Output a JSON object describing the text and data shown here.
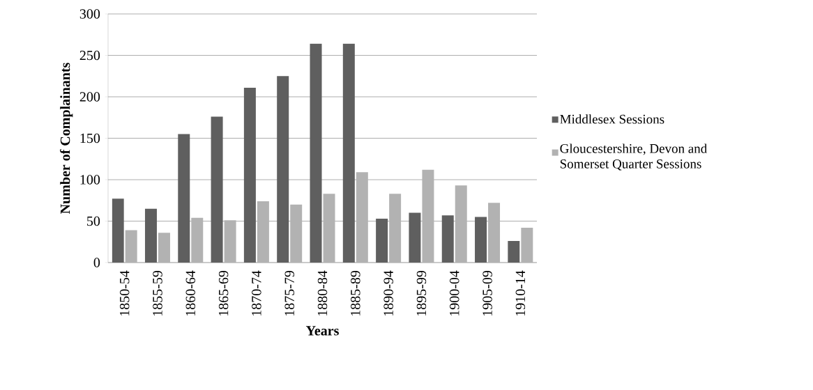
{
  "chart_data": {
    "type": "bar",
    "xlabel": "Years",
    "ylabel": "Number of Complainants",
    "categories": [
      "1850-54",
      "1855-59",
      "1860-64",
      "1865-69",
      "1870-74",
      "1875-79",
      "1880-84",
      "1885-89",
      "1890-94",
      "1895-99",
      "1900-04",
      "1905-09",
      "1910-14"
    ],
    "series": [
      {
        "name": "Middlesex Sessions",
        "color": "#5f5f5f",
        "values": [
          77,
          65,
          155,
          176,
          211,
          225,
          264,
          264,
          53,
          60,
          57,
          55,
          26
        ]
      },
      {
        "name": "Gloucestershire, Devon and Somerset Quarter Sessions",
        "color": "#b2b2b2",
        "values": [
          39,
          36,
          54,
          51,
          74,
          70,
          83,
          109,
          83,
          112,
          93,
          72,
          42
        ]
      }
    ],
    "ylim": [
      0,
      300
    ],
    "yticks": [
      0,
      50,
      100,
      150,
      200,
      250,
      300
    ],
    "grid": "y",
    "legend": "right"
  }
}
